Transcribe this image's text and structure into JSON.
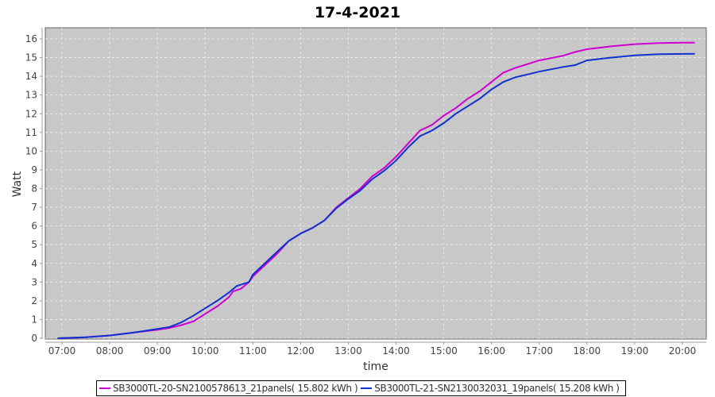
{
  "chart_data": {
    "type": "line",
    "title": "17-4-2021",
    "xlabel": "time",
    "ylabel": "Watt",
    "ylim": [
      0,
      16.6
    ],
    "yticks": [
      "0",
      "1",
      "2",
      "3",
      "4",
      "5",
      "6",
      "7",
      "8",
      "9",
      "10",
      "11",
      "12",
      "13",
      "14",
      "15",
      "16"
    ],
    "xticks": [
      "07:00",
      "08:00",
      "09:00",
      "10:00",
      "11:00",
      "12:00",
      "13:00",
      "14:00",
      "15:00",
      "16:00",
      "17:00",
      "18:00",
      "19:00",
      "20:00"
    ],
    "grid": true,
    "legend_position": "bottom",
    "background": "#c8c8c8",
    "series": [
      {
        "name": "SB3000TL-20-SN2100578613_21panels( 15.802 kWh )",
        "color": "#d000d0",
        "x": [
          "06:55",
          "07:30",
          "08:00",
          "08:30",
          "09:00",
          "09:15",
          "09:30",
          "09:45",
          "10:00",
          "10:15",
          "10:30",
          "10:35",
          "10:45",
          "10:55",
          "11:00",
          "11:30",
          "11:45",
          "12:00",
          "12:15",
          "12:30",
          "12:45",
          "13:00",
          "13:15",
          "13:30",
          "13:45",
          "14:00",
          "14:15",
          "14:30",
          "14:45",
          "15:00",
          "15:15",
          "15:30",
          "15:45",
          "16:00",
          "16:15",
          "16:30",
          "16:45",
          "17:00",
          "17:30",
          "17:45",
          "18:00",
          "18:30",
          "19:00",
          "19:30",
          "20:00",
          "20:15"
        ],
        "y": [
          0,
          0.05,
          0.15,
          0.3,
          0.45,
          0.55,
          0.7,
          0.9,
          1.3,
          1.7,
          2.2,
          2.5,
          2.65,
          3.0,
          3.3,
          4.5,
          5.2,
          5.6,
          5.9,
          6.3,
          7.0,
          7.5,
          8.0,
          8.65,
          9.1,
          9.7,
          10.4,
          11.1,
          11.4,
          11.9,
          12.3,
          12.8,
          13.2,
          13.7,
          14.2,
          14.45,
          14.65,
          14.85,
          15.1,
          15.3,
          15.45,
          15.6,
          15.72,
          15.78,
          15.8,
          15.802
        ]
      },
      {
        "name": "SB3000TL-21-SN2130032031_19panels( 15.208 kWh )",
        "color": "#1030d0",
        "x": [
          "06:55",
          "07:30",
          "08:00",
          "08:30",
          "09:00",
          "09:15",
          "09:30",
          "09:45",
          "10:00",
          "10:15",
          "10:30",
          "10:40",
          "10:55",
          "11:00",
          "11:30",
          "11:45",
          "12:00",
          "12:15",
          "12:30",
          "12:45",
          "13:00",
          "13:15",
          "13:30",
          "13:45",
          "14:00",
          "14:15",
          "14:30",
          "14:45",
          "15:00",
          "15:15",
          "15:30",
          "15:45",
          "16:00",
          "16:15",
          "16:30",
          "16:45",
          "17:00",
          "17:30",
          "17:45",
          "18:00",
          "18:30",
          "19:00",
          "19:30",
          "20:00",
          "20:15"
        ],
        "y": [
          0,
          0.05,
          0.15,
          0.3,
          0.5,
          0.6,
          0.85,
          1.2,
          1.6,
          2.0,
          2.45,
          2.8,
          3.0,
          3.4,
          4.6,
          5.2,
          5.6,
          5.9,
          6.3,
          6.95,
          7.45,
          7.9,
          8.5,
          8.95,
          9.5,
          10.2,
          10.8,
          11.1,
          11.5,
          12.0,
          12.4,
          12.8,
          13.3,
          13.7,
          13.95,
          14.1,
          14.25,
          14.5,
          14.6,
          14.85,
          15.0,
          15.12,
          15.18,
          15.2,
          15.208
        ]
      }
    ]
  }
}
